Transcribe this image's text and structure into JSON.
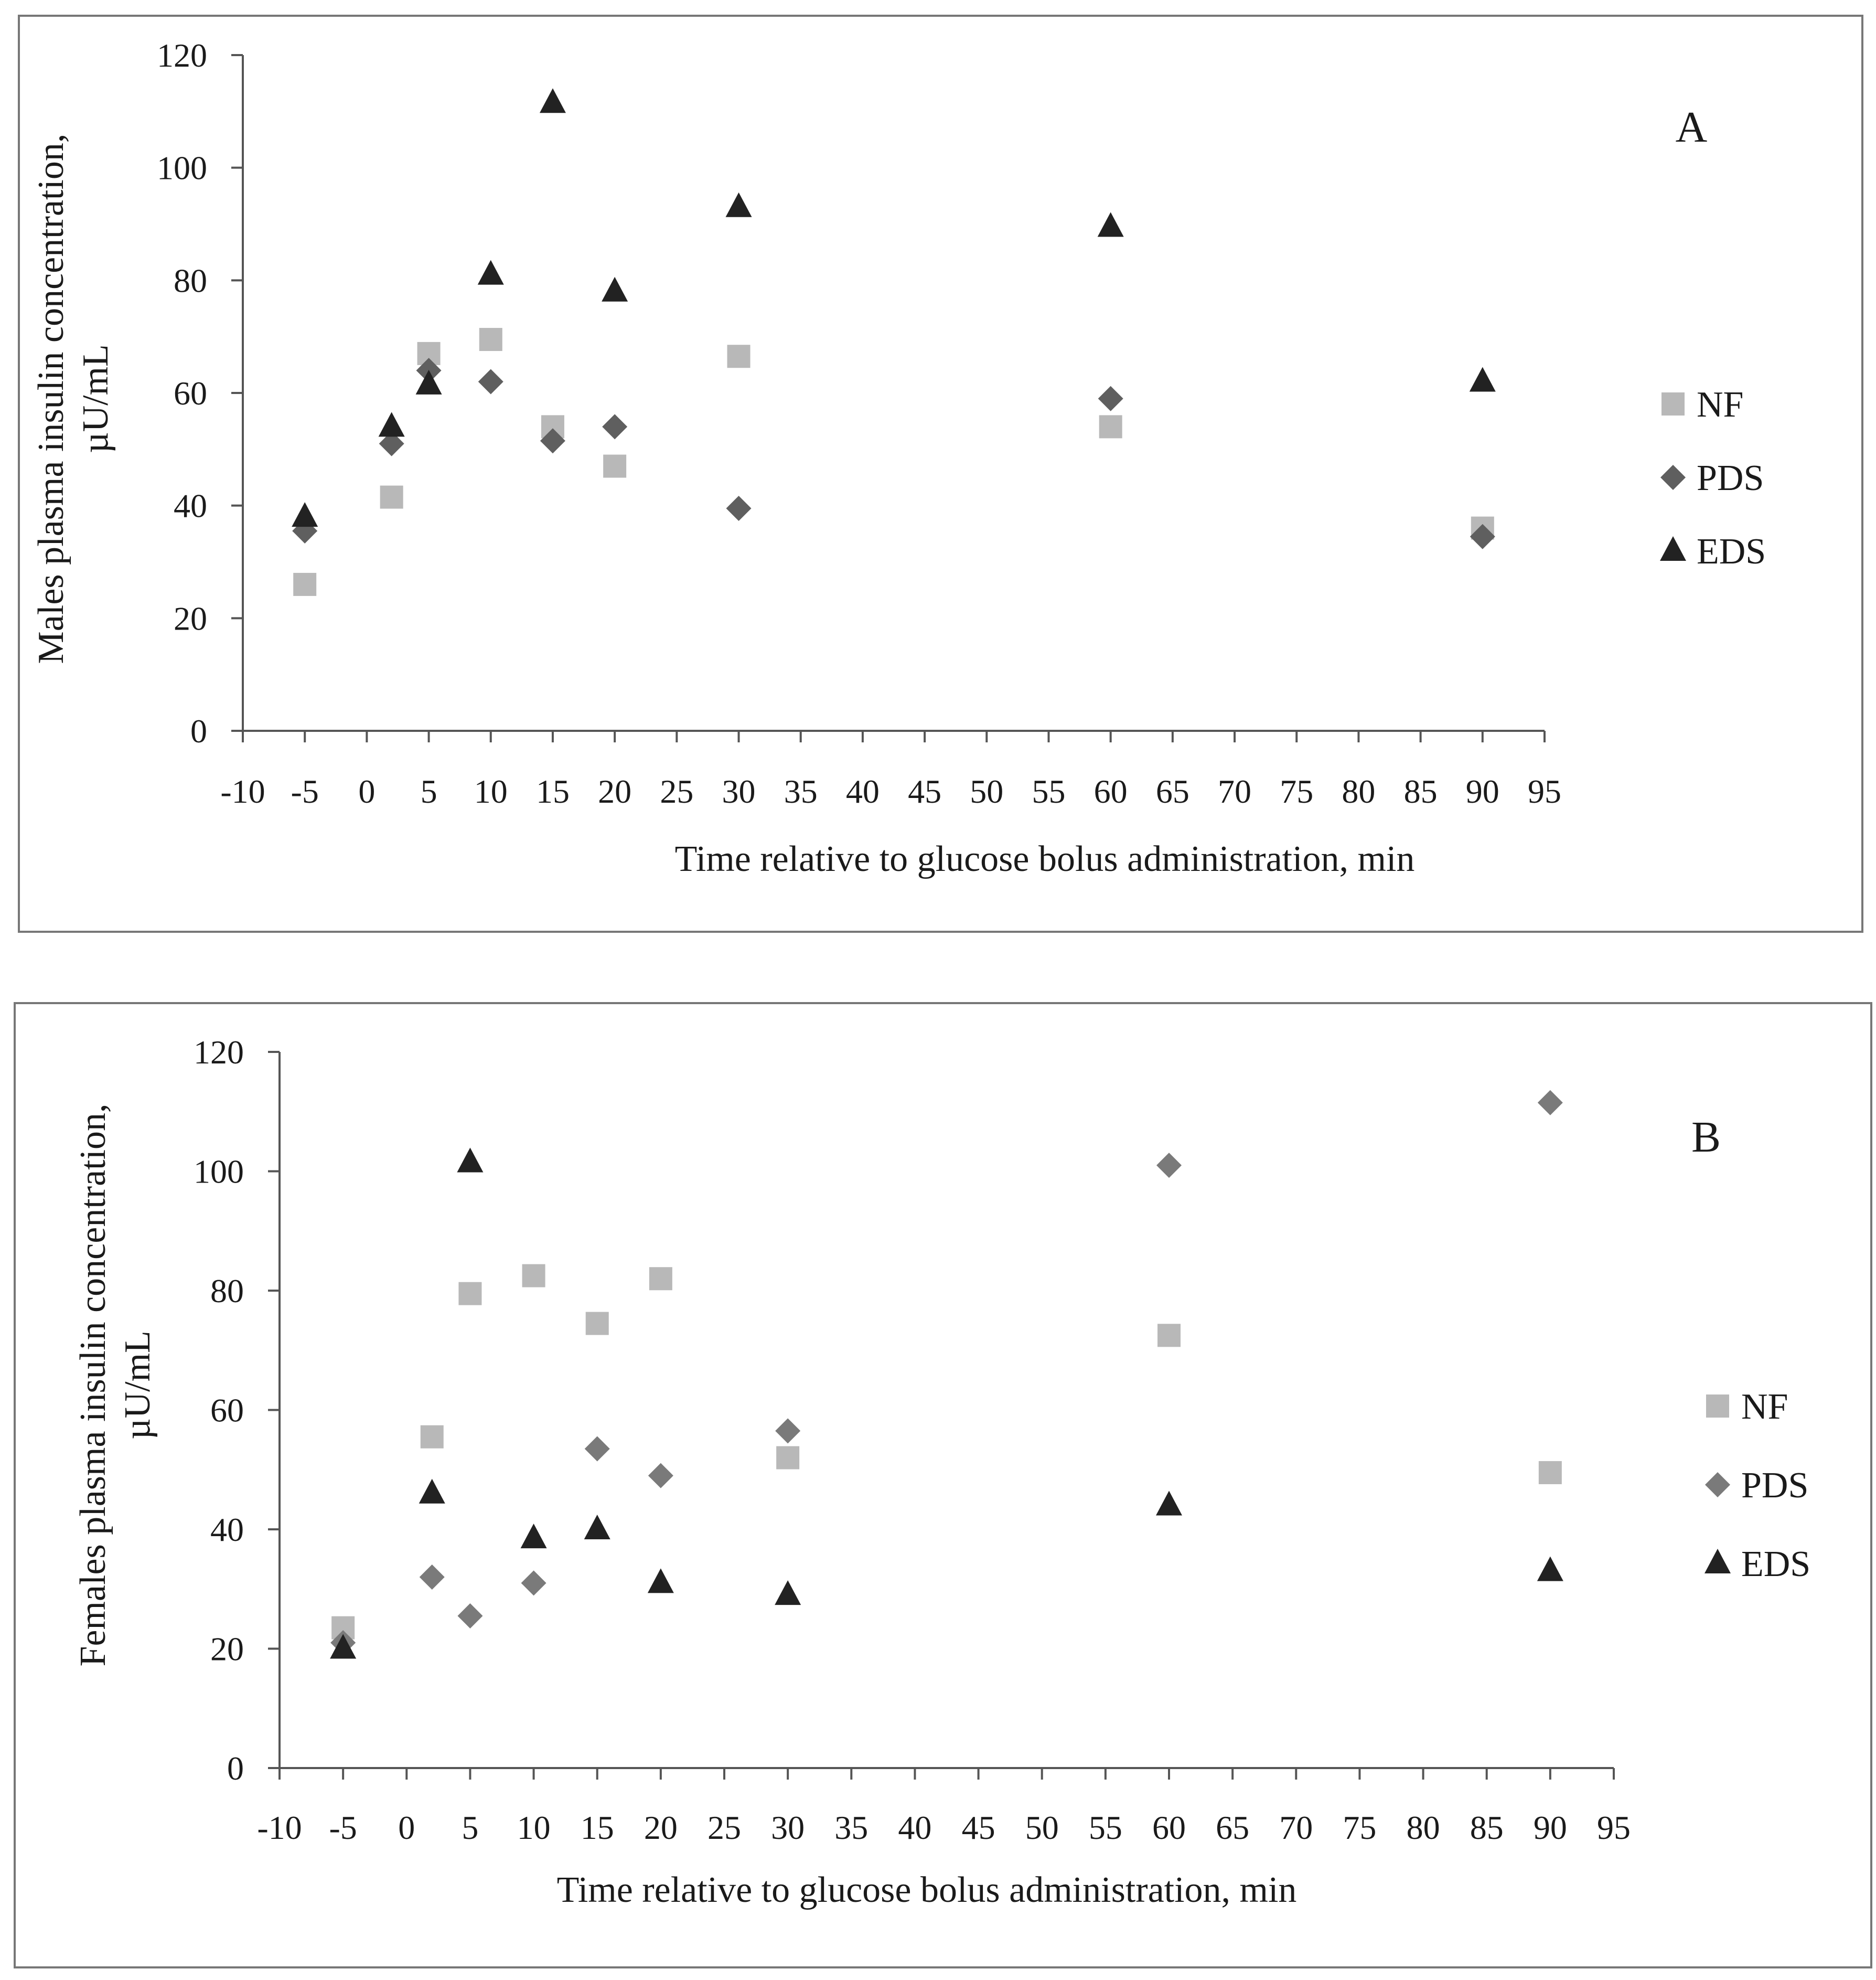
{
  "chart_data": [
    {
      "type": "scatter",
      "panel_label": "A",
      "ylabel_line1": "Males plasma insulin concentration,",
      "ylabel_line2": "µU/mL",
      "xlabel": "Time relative to glucose bolus administration, min",
      "xlim": [
        -10,
        95
      ],
      "ylim": [
        0,
        120
      ],
      "xticks": [
        -10,
        -5,
        0,
        5,
        10,
        15,
        20,
        25,
        30,
        35,
        40,
        45,
        50,
        55,
        60,
        65,
        70,
        75,
        80,
        85,
        90,
        95
      ],
      "yticks": [
        0,
        20,
        40,
        60,
        80,
        100,
        120
      ],
      "x": [
        -5,
        2,
        5,
        10,
        15,
        20,
        30,
        60,
        90
      ],
      "series": [
        {
          "name": "NF",
          "marker": "square",
          "color": "#b8b8b8",
          "values": [
            26,
            41.5,
            67,
            69.5,
            54,
            47,
            66.5,
            54,
            36
          ]
        },
        {
          "name": "PDS",
          "marker": "diamond",
          "color": "#5f5f5f",
          "values": [
            35.5,
            51,
            64,
            62,
            51.5,
            54,
            39.5,
            59,
            34.5
          ]
        },
        {
          "name": "EDS",
          "marker": "triangle",
          "color": "#222222",
          "values": [
            38,
            54,
            61.5,
            81,
            111.5,
            78,
            93,
            89.5,
            62
          ]
        }
      ]
    },
    {
      "type": "scatter",
      "panel_label": "B",
      "ylabel_line1": "Females plasma insulin concentration,",
      "ylabel_line2": "µU/mL",
      "xlabel": "Time relative to glucose bolus administration, min",
      "xlim": [
        -10,
        95
      ],
      "ylim": [
        0,
        120
      ],
      "xticks": [
        -10,
        -5,
        0,
        5,
        10,
        15,
        20,
        25,
        30,
        35,
        40,
        45,
        50,
        55,
        60,
        65,
        70,
        75,
        80,
        85,
        90,
        95
      ],
      "yticks": [
        0,
        20,
        40,
        60,
        80,
        100,
        120
      ],
      "x": [
        -5,
        2,
        5,
        10,
        15,
        20,
        30,
        60,
        90
      ],
      "series": [
        {
          "name": "NF",
          "marker": "square",
          "color": "#b8b8b8",
          "values": [
            23.5,
            55.5,
            79.5,
            82.5,
            74.5,
            82,
            52,
            72.5,
            49.5
          ]
        },
        {
          "name": "PDS",
          "marker": "diamond",
          "color": "#7a7a7a",
          "values": [
            21,
            32,
            25.5,
            31,
            53.5,
            49,
            56.5,
            101,
            111.5
          ]
        },
        {
          "name": "EDS",
          "marker": "triangle",
          "color": "#222222",
          "values": [
            20,
            46,
            101.5,
            38.5,
            40,
            31,
            29,
            44,
            33
          ]
        }
      ]
    }
  ]
}
